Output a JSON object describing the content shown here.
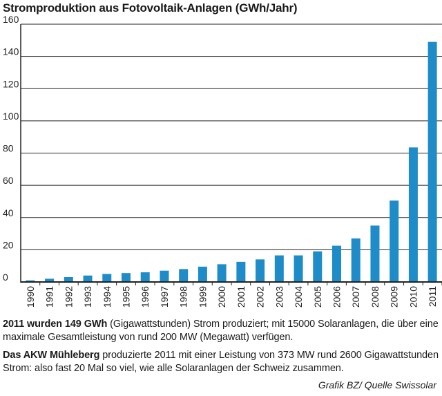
{
  "title": "Stromproduktion aus Fotovoltaik-Anlagen (GWh/Jahr)",
  "colors": {
    "bar": "#1d8cc8",
    "grid": "#222222",
    "axis": "#222222"
  },
  "chart_data": {
    "type": "bar",
    "title": "Stromproduktion aus Fotovoltaik-Anlagen (GWh/Jahr)",
    "xlabel": "",
    "ylabel": "GWh/Jahr",
    "ylim": [
      0,
      160
    ],
    "yticks": [
      0,
      20,
      40,
      60,
      80,
      100,
      120,
      140,
      160
    ],
    "grid": true,
    "categories": [
      "1990",
      "1991",
      "1992",
      "1993",
      "1994",
      "1995",
      "1996",
      "1997",
      "1998",
      "1999",
      "2000",
      "2001",
      "2002",
      "2003",
      "2004",
      "2005",
      "2006",
      "2007",
      "2008",
      "2009",
      "2010",
      "2011"
    ],
    "values": [
      1,
      2,
      3,
      4,
      5,
      5.5,
      6,
      7,
      8,
      9.5,
      11,
      12.5,
      14,
      16.5,
      16.5,
      19,
      22.5,
      27,
      35,
      50.5,
      83.5,
      149
    ]
  },
  "notes": [
    {
      "lead": "2011 wurden 149 GWh",
      "text": " (Gigawattstunden) Strom produziert; mit 15000 Solaranlagen, die über eine maximale Gesamtleistung von rund 200 MW (Megawatt) verfügen."
    },
    {
      "lead": "Das AKW Mühleberg",
      "text": " produzierte 2011 mit einer Leistung von 373 MW rund 2600 Gigawattstunden Strom: also fast 20 Mal so viel, wie alle Solaranlagen der Schweiz zusammen."
    }
  ],
  "source": "Grafik BZ/ Quelle Swissolar"
}
